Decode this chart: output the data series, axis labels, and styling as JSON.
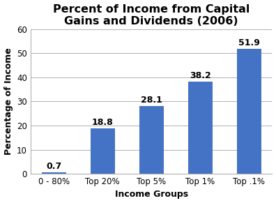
{
  "title": "Percent of Income from Capital\nGains and Dividends (2006)",
  "categories": [
    "0 - 80%",
    "Top 20%",
    "Top 5%",
    "Top 1%",
    "Top .1%"
  ],
  "values": [
    0.7,
    18.8,
    28.1,
    38.2,
    51.9
  ],
  "bar_color": "#4472C4",
  "xlabel": "Income Groups",
  "ylabel": "Percentage of Income",
  "ylim": [
    0,
    60
  ],
  "yticks": [
    0,
    10,
    20,
    30,
    40,
    50,
    60
  ],
  "title_fontsize": 11.5,
  "axis_label_fontsize": 9,
  "tick_fontsize": 8.5,
  "annotation_fontsize": 9,
  "background_color": "#ffffff",
  "grid_color": "#b0b0b0",
  "bar_width": 0.5
}
